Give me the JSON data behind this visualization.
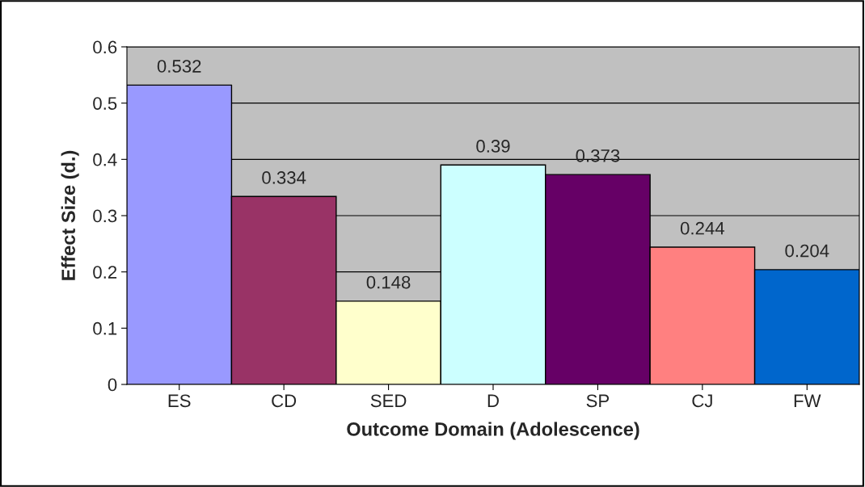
{
  "chart_data": {
    "type": "bar",
    "xlabel": "Outcome Domain (Adolescence)",
    "ylabel": "Effect Size (d.)",
    "categories": [
      "ES",
      "CD",
      "SED",
      "D",
      "SP",
      "CJ",
      "FW"
    ],
    "values": [
      0.532,
      0.334,
      0.148,
      0.39,
      0.373,
      0.244,
      0.204
    ],
    "colors": [
      "#9999ff",
      "#993366",
      "#ffffcc",
      "#ccffff",
      "#660066",
      "#ff8080",
      "#0066cc"
    ],
    "ylim": [
      0,
      0.6
    ],
    "yticks": [
      0,
      0.1,
      0.2,
      0.3,
      0.4,
      0.5,
      0.6
    ],
    "grid": "y",
    "data_labels": true
  }
}
